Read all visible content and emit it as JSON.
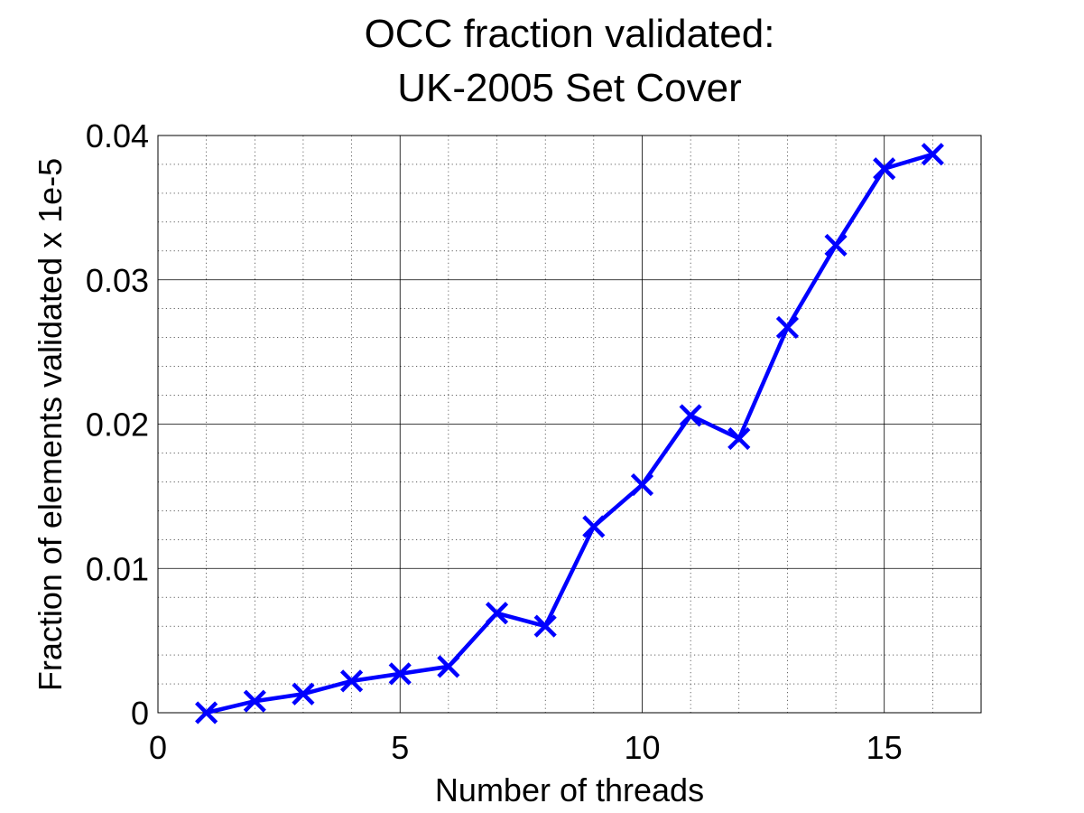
{
  "chart_data": {
    "type": "line",
    "title": [
      "OCC fraction validated:",
      "UK-2005 Set Cover"
    ],
    "xlabel": "Number of threads",
    "ylabel": "Fraction of elements validated x 1e-5",
    "xlim": [
      0,
      17
    ],
    "ylim": [
      0,
      0.04
    ],
    "xticks": [
      0,
      5,
      10,
      15
    ],
    "xtick_labels": [
      "0",
      "5",
      "10",
      "15"
    ],
    "yticks": [
      0,
      0.01,
      0.02,
      0.03,
      0.04
    ],
    "ytick_labels": [
      "0",
      "0.01",
      "0.02",
      "0.03",
      "0.04"
    ],
    "grid": true,
    "minor_grid": true,
    "series": [
      {
        "color": "#0000ff",
        "marker": "x",
        "x": [
          1,
          2,
          3,
          4,
          5,
          6,
          7,
          8,
          9,
          10,
          11,
          12,
          13,
          14,
          15,
          16
        ],
        "y": [
          0.0,
          0.0008,
          0.0013,
          0.0022,
          0.0027,
          0.0032,
          0.0069,
          0.006,
          0.0129,
          0.0158,
          0.0206,
          0.019,
          0.0267,
          0.0324,
          0.0377,
          0.0387
        ]
      }
    ]
  }
}
